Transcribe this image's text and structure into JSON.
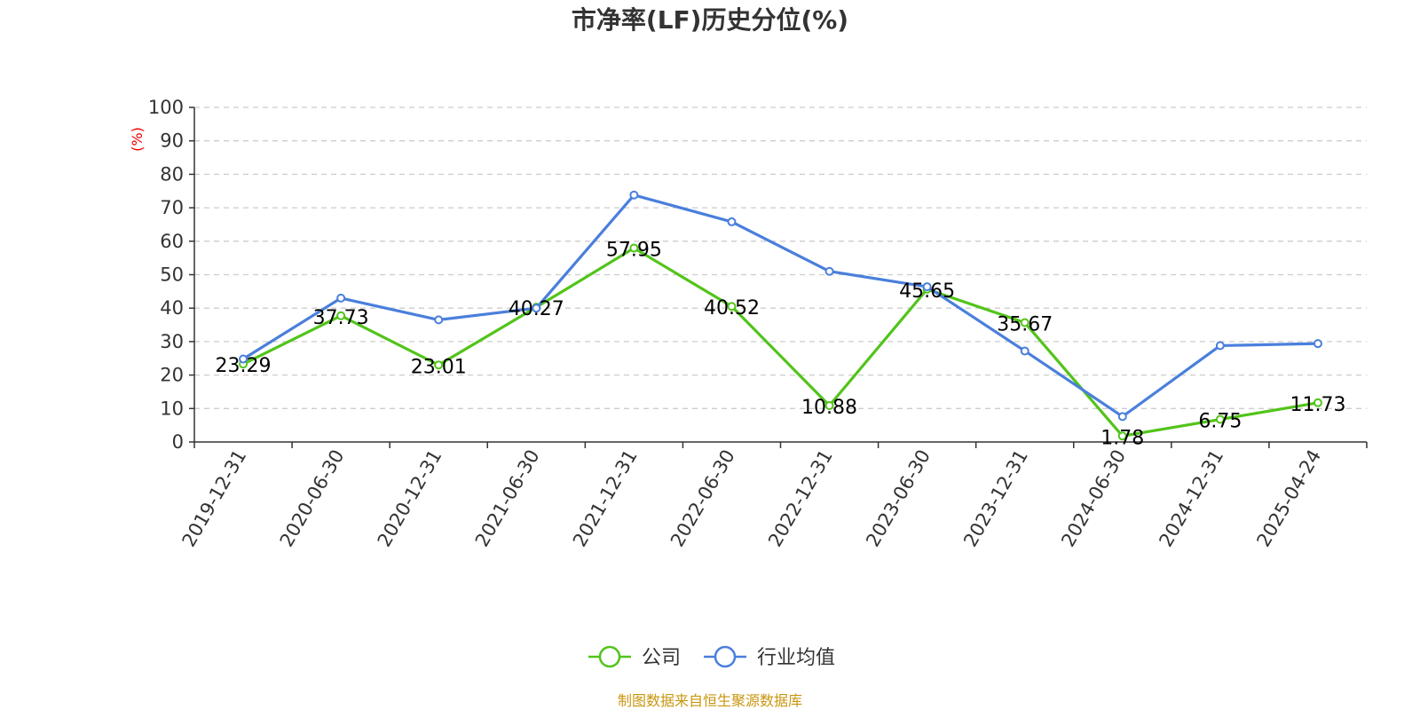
{
  "chart_data": {
    "type": "line",
    "title": "市净率(LF)历史分位(%)",
    "ylabel": "(%)",
    "ylim": [
      0,
      100
    ],
    "yticks": [
      0,
      10,
      20,
      30,
      40,
      50,
      60,
      70,
      80,
      90,
      100
    ],
    "grid": true,
    "legend_position": "bottom",
    "categories": [
      "2019-12-31",
      "2020-06-30",
      "2020-12-31",
      "2021-06-30",
      "2021-12-31",
      "2022-06-30",
      "2022-12-31",
      "2023-06-30",
      "2023-12-31",
      "2024-06-30",
      "2024-12-31",
      "2025-04-24"
    ],
    "series": [
      {
        "name": "公司",
        "color": "#52c41a",
        "values": [
          23.29,
          37.73,
          23.01,
          40.27,
          57.95,
          40.52,
          10.88,
          45.65,
          35.67,
          1.78,
          6.75,
          11.73
        ],
        "labels": [
          "23.29",
          "37.73",
          "23.01",
          "40.27",
          "57.95",
          "40.52",
          "10.88",
          "45.65",
          "35.67",
          "1.78",
          "6.75",
          "11.73"
        ]
      },
      {
        "name": "行业均值",
        "color": "#4a7fdc",
        "values": [
          24.8,
          43.0,
          36.5,
          40.0,
          73.8,
          65.8,
          51.0,
          46.4,
          27.2,
          7.6,
          28.8,
          29.4
        ]
      }
    ]
  },
  "footer": {
    "source": "制图数据来自恒生聚源数据库"
  }
}
